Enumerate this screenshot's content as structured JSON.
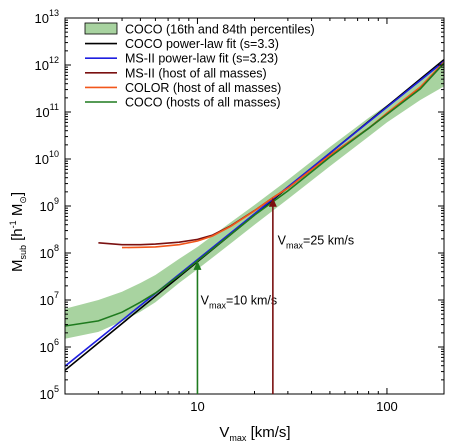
{
  "chart_data": {
    "type": "line",
    "xscale": "log",
    "yscale": "log",
    "xlim": [
      2,
      200
    ],
    "ylim": [
      100000,
      10000000000000
    ],
    "grid": false,
    "legend_position": "top-left",
    "xlabel_main": "V",
    "xlabel_sub": "max",
    "xlabel_rest": " [km/s]",
    "ylabel_main": "M",
    "ylabel_sub": "sub",
    "ylabel_rest": " [h",
    "ylabel_sup": "-1",
    "ylabel_unit": " M",
    "ylabel_sym": "⊙",
    "ylabel_end": "]",
    "x_ticks": [
      {
        "value": 10,
        "label": "10"
      },
      {
        "value": 100,
        "label": "100"
      }
    ],
    "y_ticks": [
      {
        "value": 100000,
        "base": "10",
        "exp": "5"
      },
      {
        "value": 1000000,
        "base": "10",
        "exp": "6"
      },
      {
        "value": 10000000,
        "base": "10",
        "exp": "7"
      },
      {
        "value": 100000000,
        "base": "10",
        "exp": "8"
      },
      {
        "value": 1000000000,
        "base": "10",
        "exp": "9"
      },
      {
        "value": 10000000000,
        "base": "10",
        "exp": "10"
      },
      {
        "value": 100000000000,
        "base": "10",
        "exp": "11"
      },
      {
        "value": 1000000000000,
        "base": "10",
        "exp": "12"
      },
      {
        "value": 10000000000000,
        "base": "10",
        "exp": "13"
      }
    ],
    "band": {
      "name": "COCO (16th and 84th percentiles)",
      "color": "#a8d3a0",
      "edge": "#8fc487",
      "x": [
        2,
        3,
        4,
        5,
        6,
        8,
        10,
        15,
        20,
        30,
        50,
        80,
        100,
        150,
        200
      ],
      "lower": [
        1500000,
        2100000,
        3500000,
        5600000,
        9000000,
        23000000,
        45000000,
        160000000,
        400000000,
        1400000000,
        7000000000,
        30000000000,
        60000000000,
        180000000000,
        350000000000
      ],
      "upper": [
        6500000,
        10000000,
        15000000,
        23000000,
        34000000,
        75000000,
        135000000,
        450000000,
        1050000000,
        3600000000,
        18000000000,
        75000000000,
        140000000000,
        450000000000,
        1300000000000
      ]
    },
    "series": [
      {
        "name": "COCO power-law fit (s=3.3)",
        "color": "#000000",
        "x": [
          2,
          200
        ],
        "y": [
          320000,
          1300000000000
        ]
      },
      {
        "name": "MS-II power-law fit (s=3.23)",
        "color": "#1f1fe0",
        "x": [
          2,
          200
        ],
        "y": [
          390000,
          1200000000000
        ]
      },
      {
        "name": "MS-II (host of all masses)",
        "color": "#7a1010",
        "x": [
          3,
          4,
          5,
          6,
          8,
          10,
          12,
          15,
          20,
          25,
          30,
          50,
          80,
          100,
          150,
          200
        ],
        "y": [
          165000000,
          150000000,
          150000000,
          155000000,
          170000000,
          195000000,
          240000000,
          380000000,
          800000000,
          1500000000,
          2400000000,
          12000000000,
          45000000000,
          90000000000,
          320000000000,
          1100000000000
        ]
      },
      {
        "name": "COLOR (host of all masses)",
        "color": "#f2571b",
        "x": [
          4,
          5,
          6,
          8,
          10,
          12,
          15,
          20,
          25,
          30,
          50,
          80,
          100,
          150,
          200
        ],
        "y": [
          130000000,
          132000000,
          135000000,
          150000000,
          180000000,
          230000000,
          370000000,
          790000000,
          1500000000,
          2400000000,
          12000000000,
          45000000000,
          95000000000,
          340000000000,
          1150000000000
        ]
      },
      {
        "name": "COCO (hosts of all masses)",
        "color": "#1e7a1e",
        "x": [
          2,
          3,
          4,
          5,
          6,
          8,
          10,
          15,
          20,
          30,
          50,
          80,
          100,
          150,
          200
        ],
        "y": [
          2800000,
          3600000,
          5500000,
          9000000,
          14000000,
          33000000,
          68000000,
          250000000,
          640000000,
          2100000000,
          11000000000,
          45000000000,
          90000000000,
          310000000000,
          1100000000000
        ]
      }
    ],
    "annotations": [
      {
        "main": "V",
        "sub": "max",
        "rest": "=10 km/s",
        "arrow_x": 10,
        "arrow_from": 100000,
        "arrow_to": 68000000,
        "text_x": 10.4,
        "text_y": 8000000,
        "color": "#1e7a1e"
      },
      {
        "main": "V",
        "sub": "max",
        "rest": "=25 km/s",
        "arrow_x": 25,
        "arrow_from": 100000,
        "arrow_to": 1500000000,
        "text_x": 26.5,
        "text_y": 150000000,
        "color": "#7a1010"
      }
    ]
  }
}
